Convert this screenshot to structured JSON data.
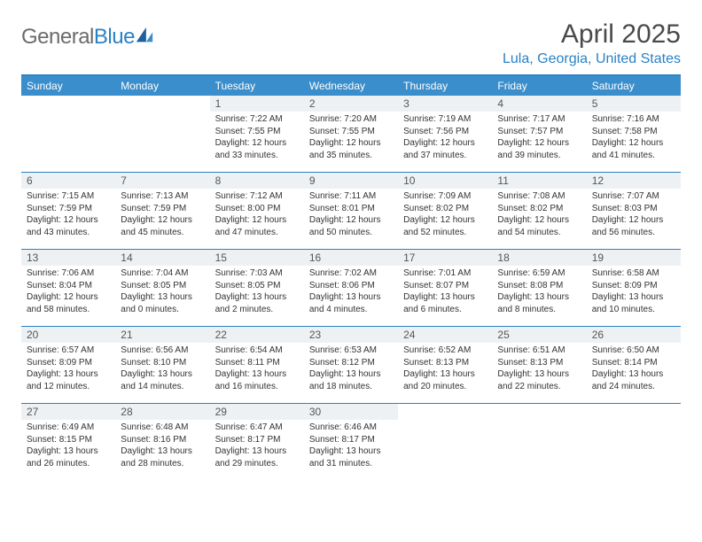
{
  "logo": {
    "part1": "General",
    "part2": "Blue"
  },
  "title": "April 2025",
  "location": "Lula, Georgia, United States",
  "header_bg": "#3a8ecb",
  "accent": "#2b82c4",
  "daynum_bg": "#eef1f3",
  "weekdays": [
    "Sunday",
    "Monday",
    "Tuesday",
    "Wednesday",
    "Thursday",
    "Friday",
    "Saturday"
  ],
  "weeks": [
    [
      null,
      null,
      {
        "n": "1",
        "sr": "7:22 AM",
        "ss": "7:55 PM",
        "dl": "12 hours and 33 minutes."
      },
      {
        "n": "2",
        "sr": "7:20 AM",
        "ss": "7:55 PM",
        "dl": "12 hours and 35 minutes."
      },
      {
        "n": "3",
        "sr": "7:19 AM",
        "ss": "7:56 PM",
        "dl": "12 hours and 37 minutes."
      },
      {
        "n": "4",
        "sr": "7:17 AM",
        "ss": "7:57 PM",
        "dl": "12 hours and 39 minutes."
      },
      {
        "n": "5",
        "sr": "7:16 AM",
        "ss": "7:58 PM",
        "dl": "12 hours and 41 minutes."
      }
    ],
    [
      {
        "n": "6",
        "sr": "7:15 AM",
        "ss": "7:59 PM",
        "dl": "12 hours and 43 minutes."
      },
      {
        "n": "7",
        "sr": "7:13 AM",
        "ss": "7:59 PM",
        "dl": "12 hours and 45 minutes."
      },
      {
        "n": "8",
        "sr": "7:12 AM",
        "ss": "8:00 PM",
        "dl": "12 hours and 47 minutes."
      },
      {
        "n": "9",
        "sr": "7:11 AM",
        "ss": "8:01 PM",
        "dl": "12 hours and 50 minutes."
      },
      {
        "n": "10",
        "sr": "7:09 AM",
        "ss": "8:02 PM",
        "dl": "12 hours and 52 minutes."
      },
      {
        "n": "11",
        "sr": "7:08 AM",
        "ss": "8:02 PM",
        "dl": "12 hours and 54 minutes."
      },
      {
        "n": "12",
        "sr": "7:07 AM",
        "ss": "8:03 PM",
        "dl": "12 hours and 56 minutes."
      }
    ],
    [
      {
        "n": "13",
        "sr": "7:06 AM",
        "ss": "8:04 PM",
        "dl": "12 hours and 58 minutes."
      },
      {
        "n": "14",
        "sr": "7:04 AM",
        "ss": "8:05 PM",
        "dl": "13 hours and 0 minutes."
      },
      {
        "n": "15",
        "sr": "7:03 AM",
        "ss": "8:05 PM",
        "dl": "13 hours and 2 minutes."
      },
      {
        "n": "16",
        "sr": "7:02 AM",
        "ss": "8:06 PM",
        "dl": "13 hours and 4 minutes."
      },
      {
        "n": "17",
        "sr": "7:01 AM",
        "ss": "8:07 PM",
        "dl": "13 hours and 6 minutes."
      },
      {
        "n": "18",
        "sr": "6:59 AM",
        "ss": "8:08 PM",
        "dl": "13 hours and 8 minutes."
      },
      {
        "n": "19",
        "sr": "6:58 AM",
        "ss": "8:09 PM",
        "dl": "13 hours and 10 minutes."
      }
    ],
    [
      {
        "n": "20",
        "sr": "6:57 AM",
        "ss": "8:09 PM",
        "dl": "13 hours and 12 minutes."
      },
      {
        "n": "21",
        "sr": "6:56 AM",
        "ss": "8:10 PM",
        "dl": "13 hours and 14 minutes."
      },
      {
        "n": "22",
        "sr": "6:54 AM",
        "ss": "8:11 PM",
        "dl": "13 hours and 16 minutes."
      },
      {
        "n": "23",
        "sr": "6:53 AM",
        "ss": "8:12 PM",
        "dl": "13 hours and 18 minutes."
      },
      {
        "n": "24",
        "sr": "6:52 AM",
        "ss": "8:13 PM",
        "dl": "13 hours and 20 minutes."
      },
      {
        "n": "25",
        "sr": "6:51 AM",
        "ss": "8:13 PM",
        "dl": "13 hours and 22 minutes."
      },
      {
        "n": "26",
        "sr": "6:50 AM",
        "ss": "8:14 PM",
        "dl": "13 hours and 24 minutes."
      }
    ],
    [
      {
        "n": "27",
        "sr": "6:49 AM",
        "ss": "8:15 PM",
        "dl": "13 hours and 26 minutes."
      },
      {
        "n": "28",
        "sr": "6:48 AM",
        "ss": "8:16 PM",
        "dl": "13 hours and 28 minutes."
      },
      {
        "n": "29",
        "sr": "6:47 AM",
        "ss": "8:17 PM",
        "dl": "13 hours and 29 minutes."
      },
      {
        "n": "30",
        "sr": "6:46 AM",
        "ss": "8:17 PM",
        "dl": "13 hours and 31 minutes."
      },
      null,
      null,
      null
    ]
  ],
  "labels": {
    "sunrise": "Sunrise: ",
    "sunset": "Sunset: ",
    "daylight": "Daylight: "
  }
}
